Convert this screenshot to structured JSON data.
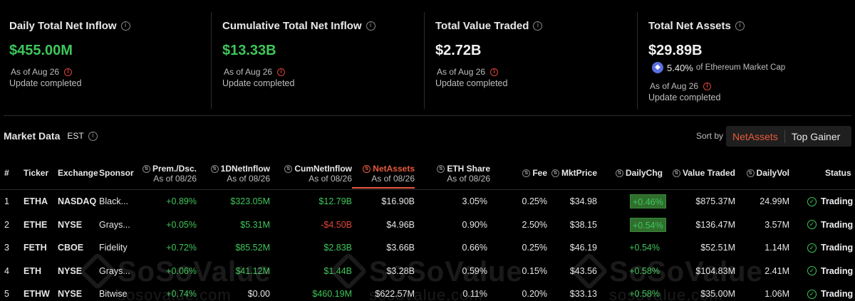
{
  "cards": [
    {
      "title": "Daily Total Net Inflow",
      "value": "$455.00M",
      "as_of": "As of Aug 26",
      "update": "Update completed"
    },
    {
      "title": "Cumulative Total Net Inflow",
      "value": "$13.33B",
      "as_of": "As of Aug 26",
      "update": "Update completed"
    },
    {
      "title": "Total Value Traded",
      "value": "$2.72B",
      "as_of": "As of Aug 26",
      "update": "Update completed"
    },
    {
      "title": "Total Net Assets",
      "value": "$29.89B",
      "mcap_pct": "5.40%",
      "mcap_label": "of Ethereum Market Cap",
      "as_of": "As of Aug 26",
      "update": "Update completed"
    }
  ],
  "market": {
    "title": "Market Data",
    "timezone": "EST",
    "sort_by_label": "Sort by",
    "sort_options": [
      "NetAssets",
      "Top Gainer"
    ],
    "sort_active": "NetAssets"
  },
  "columns": {
    "num": "#",
    "ticker": "Ticker",
    "exchange": "Exchange",
    "sponsor": "Sponsor",
    "prem": "Prem./Dsc.",
    "prem_sub": "As of 08/26",
    "inflow": "1DNetInflow",
    "inflow_sub": "As of 08/26",
    "cum": "CumNetInflow",
    "cum_sub": "As of 08/26",
    "assets": "NetAssets",
    "assets_sub": "As of 08/26",
    "share": "ETH Share",
    "share_sub": "As of 08/26",
    "fee": "Fee",
    "price": "MktPrice",
    "chg": "DailyChg",
    "traded": "Value Traded",
    "vol": "DailyVol",
    "status": "Status"
  },
  "rows": [
    {
      "num": "1",
      "ticker": "ETHA",
      "exchange": "NASDAQ",
      "sponsor": "Black...",
      "prem": "+0.89%",
      "inflow": "$323.05M",
      "cum": "$12.79B",
      "assets": "$16.90B",
      "share": "3.05%",
      "fee": "0.25%",
      "price": "$34.98",
      "chg": "+0.46%",
      "traded": "$875.37M",
      "vol": "24.99M",
      "status": "Trading"
    },
    {
      "num": "2",
      "ticker": "ETHE",
      "exchange": "NYSE",
      "sponsor": "Grays...",
      "prem": "+0.05%",
      "inflow": "$5.31M",
      "cum": "-$4.50B",
      "assets": "$4.96B",
      "share": "0.90%",
      "fee": "2.50%",
      "price": "$38.15",
      "chg": "+0.54%",
      "traded": "$136.47M",
      "vol": "3.57M",
      "status": "Trading"
    },
    {
      "num": "3",
      "ticker": "FETH",
      "exchange": "CBOE",
      "sponsor": "Fidelity",
      "prem": "+0.72%",
      "inflow": "$85.52M",
      "cum": "$2.83B",
      "assets": "$3.66B",
      "share": "0.66%",
      "fee": "0.25%",
      "price": "$46.19",
      "chg": "+0.54%",
      "traded": "$52.51M",
      "vol": "1.14M",
      "status": "Trading"
    },
    {
      "num": "4",
      "ticker": "ETH",
      "exchange": "NYSE",
      "sponsor": "Grays...",
      "prem": "+0.06%",
      "inflow": "$41.12M",
      "cum": "$1.44B",
      "assets": "$3.28B",
      "share": "0.59%",
      "fee": "0.15%",
      "price": "$43.56",
      "chg": "+0.58%",
      "traded": "$104.83M",
      "vol": "2.41M",
      "status": "Trading"
    },
    {
      "num": "5",
      "ticker": "ETHW",
      "exchange": "NYSE",
      "sponsor": "Bitwise",
      "prem": "+0.74%",
      "inflow": "$0.00",
      "cum": "$460.19M",
      "assets": "$622.57M",
      "share": "0.11%",
      "fee": "0.20%",
      "price": "$33.13",
      "chg": "+0.58%",
      "traded": "$35.00M",
      "vol": "1.06M",
      "status": "Trading"
    }
  ],
  "watermark": {
    "brand": "SoSoValue",
    "site": "sosovalue.com"
  },
  "colors": {
    "green": "#3ec65a",
    "red": "#e0443a",
    "accent": "#e65a3c"
  }
}
